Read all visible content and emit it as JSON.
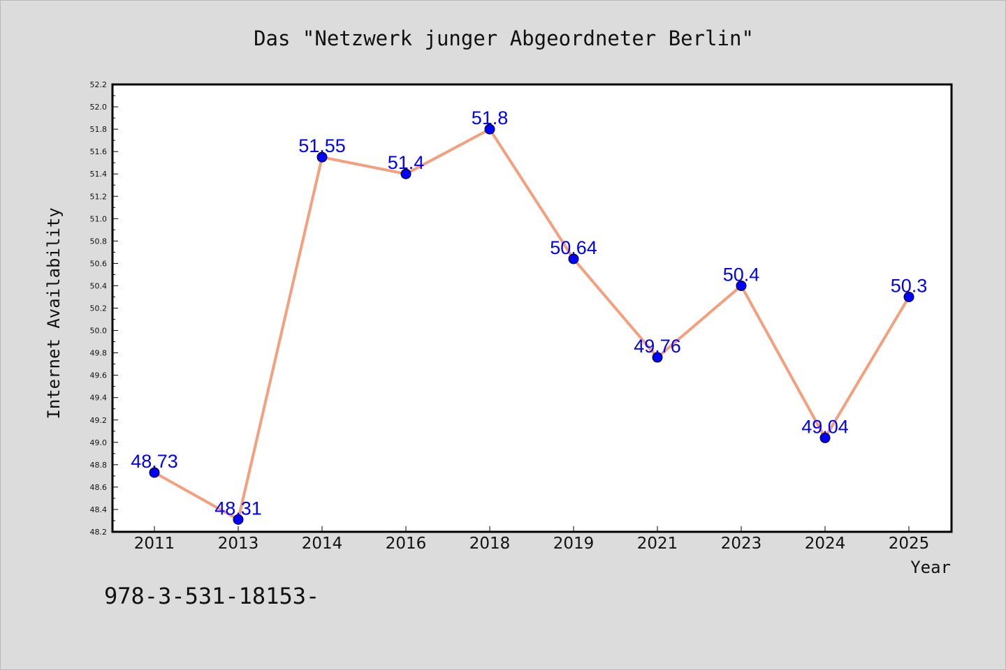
{
  "footer_text": "978-3-531-18153-",
  "chart_data": {
    "type": "line",
    "title": "Das \"Netzwerk junger Abgeordneter Berlin\"",
    "xlabel": "Year",
    "ylabel": "Internet Availability",
    "categories": [
      "2011",
      "2013",
      "2014",
      "2016",
      "2018",
      "2019",
      "2021",
      "2023",
      "2024",
      "2025"
    ],
    "values": [
      48.73,
      48.31,
      51.55,
      51.4,
      51.8,
      50.64,
      49.76,
      50.4,
      49.04,
      50.3
    ],
    "data_labels": [
      "48.73",
      "48.31",
      "51.55",
      "51.4",
      "51.8",
      "50.64",
      "49.76",
      "50.4",
      "49.04",
      "50.3"
    ],
    "ylim": [
      48.2,
      52.2
    ],
    "yticks": [
      "48.2",
      "48.4",
      "48.6",
      "48.8",
      "49.0",
      "49.2",
      "49.4",
      "49.6",
      "49.8",
      "50.0",
      "50.2",
      "50.4",
      "50.6",
      "50.8",
      "51.0",
      "51.2",
      "51.4",
      "51.6",
      "51.8",
      "52.0",
      "52.2"
    ],
    "grid": false,
    "line_color": "#f4a07e",
    "marker_color": "#0000ff",
    "label_color": "#0000ff",
    "plot_background": "#ffffff",
    "page_background": "#dcdcdc"
  }
}
